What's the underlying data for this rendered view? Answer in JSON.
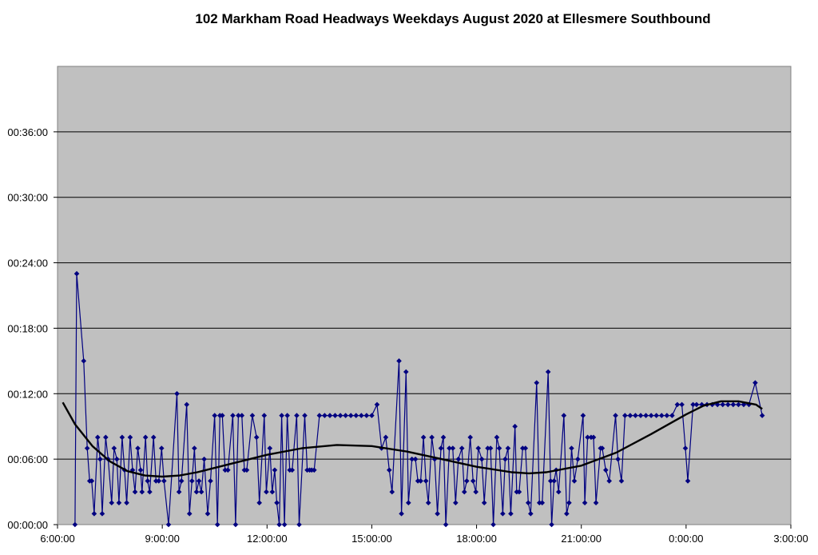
{
  "chart_data": {
    "type": "line",
    "title": "102 Markham Road Headways Weekdays August 2020 at Ellesmere Southbound",
    "xlabel": "",
    "ylabel": "",
    "x_axis": {
      "min_hours": 6,
      "max_hours": 27,
      "tick_labels": [
        "6:00:00",
        "9:00:00",
        "12:00:00",
        "15:00:00",
        "18:00:00",
        "21:00:00",
        "0:00:00",
        "3:00:00"
      ]
    },
    "y_axis": {
      "min_minutes": 0,
      "max_minutes": 42,
      "tick_labels": [
        "00:00:00",
        "00:06:00",
        "00:12:00",
        "00:18:00",
        "00:24:00",
        "00:30:00",
        "00:36:00"
      ]
    },
    "grid": true,
    "legend": "none",
    "colors": {
      "series": "#000080",
      "trend": "#000000",
      "plot_background": "#c0c0c0",
      "gridline": "#000000"
    },
    "series": [
      {
        "values": [
          [
            6.5,
            0
          ],
          [
            6.55,
            23
          ],
          [
            6.75,
            15
          ],
          [
            6.85,
            7
          ],
          [
            6.92,
            4
          ],
          [
            6.98,
            4
          ],
          [
            7.05,
            1
          ],
          [
            7.15,
            8
          ],
          [
            7.22,
            6
          ],
          [
            7.28,
            1
          ],
          [
            7.38,
            8
          ],
          [
            7.45,
            6
          ],
          [
            7.55,
            2
          ],
          [
            7.62,
            7
          ],
          [
            7.7,
            6
          ],
          [
            7.76,
            2
          ],
          [
            7.85,
            8
          ],
          [
            7.92,
            5
          ],
          [
            7.98,
            2
          ],
          [
            8.08,
            8
          ],
          [
            8.15,
            5
          ],
          [
            8.22,
            3
          ],
          [
            8.3,
            7
          ],
          [
            8.38,
            5
          ],
          [
            8.42,
            3
          ],
          [
            8.52,
            8
          ],
          [
            8.58,
            4
          ],
          [
            8.64,
            3
          ],
          [
            8.75,
            8
          ],
          [
            8.82,
            4
          ],
          [
            8.9,
            4
          ],
          [
            8.98,
            7
          ],
          [
            9.05,
            4
          ],
          [
            9.18,
            0
          ],
          [
            9.42,
            12
          ],
          [
            9.48,
            3
          ],
          [
            9.55,
            4
          ],
          [
            9.7,
            11
          ],
          [
            9.78,
            1
          ],
          [
            9.85,
            4
          ],
          [
            9.92,
            7
          ],
          [
            9.98,
            3
          ],
          [
            10.05,
            4
          ],
          [
            10.12,
            3
          ],
          [
            10.2,
            6
          ],
          [
            10.3,
            1
          ],
          [
            10.38,
            4
          ],
          [
            10.5,
            10
          ],
          [
            10.58,
            0
          ],
          [
            10.65,
            10
          ],
          [
            10.72,
            10
          ],
          [
            10.8,
            5
          ],
          [
            10.88,
            5
          ],
          [
            11.02,
            10
          ],
          [
            11.1,
            0
          ],
          [
            11.18,
            10
          ],
          [
            11.28,
            10
          ],
          [
            11.35,
            5
          ],
          [
            11.42,
            5
          ],
          [
            11.58,
            10
          ],
          [
            11.7,
            8
          ],
          [
            11.78,
            2
          ],
          [
            11.92,
            10
          ],
          [
            11.98,
            3
          ],
          [
            12.08,
            7
          ],
          [
            12.15,
            3
          ],
          [
            12.22,
            5
          ],
          [
            12.28,
            2
          ],
          [
            12.35,
            0
          ],
          [
            12.42,
            10
          ],
          [
            12.5,
            0
          ],
          [
            12.58,
            10
          ],
          [
            12.65,
            5
          ],
          [
            12.72,
            5
          ],
          [
            12.85,
            10
          ],
          [
            12.92,
            0
          ],
          [
            13.08,
            10
          ],
          [
            13.15,
            5
          ],
          [
            13.22,
            5
          ],
          [
            13.28,
            5
          ],
          [
            13.35,
            5
          ],
          [
            13.5,
            10
          ],
          [
            13.65,
            10
          ],
          [
            13.8,
            10
          ],
          [
            13.95,
            10
          ],
          [
            14.1,
            10
          ],
          [
            14.25,
            10
          ],
          [
            14.4,
            10
          ],
          [
            14.55,
            10
          ],
          [
            14.7,
            10
          ],
          [
            14.85,
            10
          ],
          [
            15.0,
            10
          ],
          [
            15.15,
            11
          ],
          [
            15.28,
            7
          ],
          [
            15.4,
            8
          ],
          [
            15.5,
            5
          ],
          [
            15.58,
            3
          ],
          [
            15.78,
            15
          ],
          [
            15.85,
            1
          ],
          [
            15.98,
            14
          ],
          [
            16.05,
            2
          ],
          [
            16.15,
            6
          ],
          [
            16.25,
            6
          ],
          [
            16.32,
            4
          ],
          [
            16.4,
            4
          ],
          [
            16.48,
            8
          ],
          [
            16.55,
            4
          ],
          [
            16.62,
            2
          ],
          [
            16.72,
            8
          ],
          [
            16.8,
            6
          ],
          [
            16.88,
            1
          ],
          [
            16.98,
            7
          ],
          [
            17.05,
            8
          ],
          [
            17.12,
            0
          ],
          [
            17.22,
            7
          ],
          [
            17.32,
            7
          ],
          [
            17.4,
            2
          ],
          [
            17.48,
            6
          ],
          [
            17.58,
            7
          ],
          [
            17.65,
            3
          ],
          [
            17.72,
            4
          ],
          [
            17.82,
            8
          ],
          [
            17.9,
            4
          ],
          [
            17.98,
            3
          ],
          [
            18.05,
            7
          ],
          [
            18.15,
            6
          ],
          [
            18.22,
            2
          ],
          [
            18.32,
            7
          ],
          [
            18.4,
            7
          ],
          [
            18.48,
            0
          ],
          [
            18.58,
            8
          ],
          [
            18.65,
            7
          ],
          [
            18.75,
            1
          ],
          [
            18.82,
            6
          ],
          [
            18.9,
            7
          ],
          [
            18.98,
            1
          ],
          [
            19.1,
            9
          ],
          [
            19.15,
            3
          ],
          [
            19.22,
            3
          ],
          [
            19.32,
            7
          ],
          [
            19.4,
            7
          ],
          [
            19.48,
            2
          ],
          [
            19.55,
            1
          ],
          [
            19.72,
            13
          ],
          [
            19.8,
            2
          ],
          [
            19.88,
            2
          ],
          [
            20.05,
            14
          ],
          [
            20.12,
            4
          ],
          [
            20.15,
            0
          ],
          [
            20.22,
            4
          ],
          [
            20.28,
            5
          ],
          [
            20.35,
            3
          ],
          [
            20.5,
            10
          ],
          [
            20.58,
            1
          ],
          [
            20.65,
            2
          ],
          [
            20.72,
            7
          ],
          [
            20.8,
            4
          ],
          [
            20.9,
            6
          ],
          [
            21.05,
            10
          ],
          [
            21.1,
            2
          ],
          [
            21.18,
            8
          ],
          [
            21.28,
            8
          ],
          [
            21.35,
            8
          ],
          [
            21.42,
            2
          ],
          [
            21.55,
            7
          ],
          [
            21.6,
            7
          ],
          [
            21.7,
            5
          ],
          [
            21.8,
            4
          ],
          [
            21.98,
            10
          ],
          [
            22.05,
            6
          ],
          [
            22.15,
            4
          ],
          [
            22.25,
            10
          ],
          [
            22.4,
            10
          ],
          [
            22.55,
            10
          ],
          [
            22.7,
            10
          ],
          [
            22.85,
            10
          ],
          [
            23.0,
            10
          ],
          [
            23.15,
            10
          ],
          [
            23.3,
            10
          ],
          [
            23.45,
            10
          ],
          [
            23.6,
            10
          ],
          [
            23.75,
            11
          ],
          [
            23.88,
            11
          ],
          [
            23.98,
            7
          ],
          [
            24.05,
            4
          ],
          [
            24.2,
            11
          ],
          [
            24.3,
            11
          ],
          [
            24.45,
            11
          ],
          [
            24.6,
            11
          ],
          [
            24.75,
            11
          ],
          [
            24.9,
            11
          ],
          [
            25.05,
            11
          ],
          [
            25.2,
            11
          ],
          [
            25.35,
            11
          ],
          [
            25.5,
            11
          ],
          [
            25.65,
            11
          ],
          [
            25.8,
            11
          ],
          [
            25.98,
            13
          ],
          [
            26.18,
            10
          ]
        ]
      }
    ],
    "trendline": {
      "type": "polynomial",
      "values": [
        [
          6.15,
          11.2
        ],
        [
          6.5,
          9.2
        ],
        [
          7.0,
          7.2
        ],
        [
          7.5,
          5.8
        ],
        [
          8.0,
          4.9
        ],
        [
          8.5,
          4.5
        ],
        [
          9.0,
          4.4
        ],
        [
          9.5,
          4.5
        ],
        [
          10.0,
          4.8
        ],
        [
          11.0,
          5.6
        ],
        [
          12.0,
          6.4
        ],
        [
          13.0,
          7.0
        ],
        [
          14.0,
          7.3
        ],
        [
          15.0,
          7.2
        ],
        [
          16.0,
          6.7
        ],
        [
          17.0,
          6.0
        ],
        [
          18.0,
          5.3
        ],
        [
          19.0,
          4.8
        ],
        [
          19.5,
          4.7
        ],
        [
          20.0,
          4.8
        ],
        [
          21.0,
          5.4
        ],
        [
          22.0,
          6.6
        ],
        [
          23.0,
          8.3
        ],
        [
          24.0,
          10.1
        ],
        [
          24.5,
          10.9
        ],
        [
          25.0,
          11.3
        ],
        [
          25.5,
          11.3
        ],
        [
          26.0,
          11.0
        ],
        [
          26.18,
          10.6
        ]
      ]
    }
  }
}
